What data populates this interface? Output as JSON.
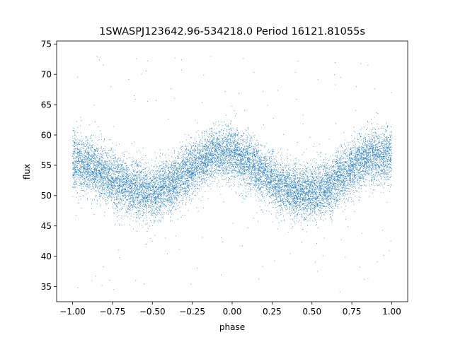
{
  "chart_data": {
    "type": "scatter",
    "title": "1SWASPJ123642.96-534218.0 Period 16121.81055s",
    "xlabel": "phase",
    "ylabel": "flux",
    "xlim": [
      -1.1,
      1.1
    ],
    "ylim": [
      32.5,
      75.5
    ],
    "x_ticks": [
      -1.0,
      -0.75,
      -0.5,
      -0.25,
      0.0,
      0.25,
      0.5,
      0.75,
      1.0
    ],
    "x_tick_labels": [
      "−1.00",
      "−0.75",
      "−0.50",
      "−0.25",
      "0.00",
      "0.25",
      "0.50",
      "0.75",
      "1.00"
    ],
    "y_ticks": [
      35,
      40,
      45,
      50,
      55,
      60,
      65,
      70,
      75
    ],
    "y_tick_labels": [
      "35",
      "40",
      "45",
      "50",
      "55",
      "60",
      "65",
      "70",
      "75"
    ],
    "grid": false,
    "marker_color": "#1f77b4",
    "series": [
      {
        "phase_range": [
          -1.0,
          1.0
        ],
        "approx_points": 14000,
        "binned_mean_flux": {
          "phase": [
            -1.0,
            -0.9,
            -0.8,
            -0.7,
            -0.6,
            -0.5,
            -0.4,
            -0.3,
            -0.2,
            -0.1,
            0.0,
            0.1,
            0.2,
            0.3,
            0.4,
            0.5,
            0.6,
            0.7,
            0.8,
            0.9,
            1.0
          ],
          "flux": [
            55.5,
            55.0,
            53.5,
            52.0,
            51.0,
            50.5,
            51.5,
            53.5,
            55.5,
            57.0,
            57.0,
            55.5,
            53.5,
            51.5,
            50.5,
            50.5,
            51.5,
            53.5,
            55.5,
            56.5,
            56.5
          ]
        },
        "band_half_width": 4.0,
        "outlier_range": [
          34,
          73
        ]
      }
    ]
  }
}
